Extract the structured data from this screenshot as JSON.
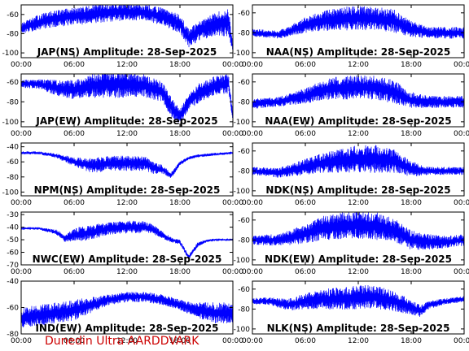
{
  "footer": "Dunedin Ultra AARDDVARK",
  "colors": {
    "trace": "#0000ff",
    "axes": "#000000",
    "footer": "#cc0000",
    "background": "#ffffff"
  },
  "chart_data": [
    {
      "type": "line",
      "title": "JAP(NS) Amplitude: 28-Sep-2025",
      "x_ticks": [
        "00:00",
        "06:00",
        "12:00",
        "18:00",
        "00:00"
      ],
      "xlim_hours": [
        0,
        24
      ],
      "y_ticks": [
        -60,
        -80,
        -100
      ],
      "ylim": [
        -105,
        -50
      ],
      "series": [
        {
          "x": [
            0,
            2,
            4,
            6,
            8,
            10,
            12,
            14,
            16,
            18,
            19,
            20,
            22,
            23.5,
            24
          ],
          "y": [
            -75,
            -68,
            -64,
            -62,
            -60,
            -58,
            -57,
            -58,
            -62,
            -70,
            -85,
            -78,
            -70,
            -68,
            -95
          ],
          "spread": [
            6,
            8,
            9,
            9,
            10,
            10,
            9,
            9,
            9,
            10,
            10,
            10,
            12,
            15,
            5
          ]
        }
      ]
    },
    {
      "type": "line",
      "title": "NAA(NS) Amplitude: 28-Sep-2025",
      "x_ticks": [
        "00:00",
        "06:00",
        "12:00",
        "18:00",
        "00:00"
      ],
      "xlim_hours": [
        0,
        24
      ],
      "y_ticks": [
        -60,
        -80,
        -100
      ],
      "ylim": [
        -105,
        -52
      ],
      "series": [
        {
          "x": [
            0,
            3,
            6,
            8,
            10,
            12,
            14,
            16,
            18,
            20,
            22,
            24
          ],
          "y": [
            -80,
            -82,
            -72,
            -68,
            -66,
            -65,
            -66,
            -68,
            -76,
            -80,
            -80,
            -80
          ],
          "spread": [
            4,
            4,
            8,
            10,
            12,
            12,
            12,
            12,
            8,
            6,
            6,
            6
          ]
        }
      ]
    },
    {
      "type": "line",
      "title": "JAP(EW) Amplitude: 28-Sep-2025",
      "x_ticks": [
        "00:00",
        "06:00",
        "12:00",
        "18:00",
        "00:00"
      ],
      "xlim_hours": [
        0,
        24
      ],
      "y_ticks": [
        -60,
        -80,
        -100
      ],
      "ylim": [
        -105,
        -52
      ],
      "series": [
        {
          "x": [
            0,
            2,
            4,
            6,
            8,
            10,
            12,
            14,
            16,
            17,
            18,
            19,
            20,
            22,
            23.5,
            24
          ],
          "y": [
            -62,
            -62,
            -66,
            -68,
            -64,
            -62,
            -62,
            -64,
            -70,
            -85,
            -95,
            -80,
            -72,
            -64,
            -62,
            -95
          ],
          "spread": [
            4,
            5,
            8,
            10,
            12,
            14,
            14,
            12,
            10,
            10,
            8,
            8,
            10,
            10,
            10,
            4
          ]
        }
      ]
    },
    {
      "type": "line",
      "title": "NAA(EW) Amplitude: 28-Sep-2025",
      "x_ticks": [
        "00:00",
        "06:00",
        "12:00",
        "18:00",
        "00:00"
      ],
      "xlim_hours": [
        0,
        24
      ],
      "y_ticks": [
        -60,
        -80,
        -100
      ],
      "ylim": [
        -105,
        -52
      ],
      "series": [
        {
          "x": [
            0,
            3,
            6,
            8,
            10,
            12,
            14,
            16,
            18,
            20,
            22,
            24
          ],
          "y": [
            -82,
            -80,
            -74,
            -68,
            -66,
            -65,
            -66,
            -70,
            -78,
            -80,
            -80,
            -80
          ],
          "spread": [
            5,
            5,
            8,
            10,
            12,
            12,
            12,
            12,
            8,
            6,
            6,
            6
          ]
        }
      ]
    },
    {
      "type": "line",
      "title": "NPM(NS) Amplitude: 28-Sep-2025",
      "x_ticks": [
        "00:00",
        "06:00",
        "12:00",
        "18:00",
        "00:00"
      ],
      "xlim_hours": [
        0,
        24
      ],
      "y_ticks": [
        -40,
        -60,
        -80,
        -100
      ],
      "ylim": [
        -105,
        -35
      ],
      "series": [
        {
          "x": [
            0,
            2,
            4,
            6,
            8,
            10,
            12,
            14,
            15,
            16,
            17,
            18,
            19,
            20,
            22,
            24
          ],
          "y": [
            -48,
            -48,
            -52,
            -60,
            -65,
            -62,
            -62,
            -62,
            -68,
            -70,
            -78,
            -62,
            -55,
            -52,
            -50,
            -48
          ],
          "spread": [
            2,
            2,
            3,
            6,
            10,
            10,
            10,
            10,
            8,
            6,
            4,
            3,
            2,
            2,
            2,
            2
          ]
        }
      ]
    },
    {
      "type": "line",
      "title": "NDK(NS) Amplitude: 28-Sep-2025",
      "x_ticks": [
        "00:00",
        "06:00",
        "12:00",
        "18:00",
        "00:00"
      ],
      "xlim_hours": [
        0,
        24
      ],
      "y_ticks": [
        -60,
        -80,
        -100
      ],
      "ylim": [
        -105,
        -52
      ],
      "series": [
        {
          "x": [
            0,
            3,
            6,
            8,
            10,
            12,
            14,
            16,
            18,
            20,
            22,
            24
          ],
          "y": [
            -80,
            -82,
            -76,
            -72,
            -70,
            -68,
            -68,
            -70,
            -78,
            -80,
            -80,
            -80
          ],
          "spread": [
            4,
            5,
            8,
            10,
            12,
            14,
            14,
            12,
            8,
            4,
            4,
            4
          ]
        }
      ]
    },
    {
      "type": "line",
      "title": "NWC(EW) Amplitude: 28-Sep-2025",
      "x_ticks": [
        "00:00",
        "06:00",
        "12:00",
        "18:00",
        "00:00"
      ],
      "xlim_hours": [
        0,
        24
      ],
      "y_ticks": [
        -30,
        -40,
        -50,
        -60,
        -70
      ],
      "ylim": [
        -70,
        -28
      ],
      "series": [
        {
          "x": [
            0,
            2,
            4,
            5,
            6,
            7,
            8,
            10,
            12,
            14,
            15,
            16,
            17,
            18,
            19,
            20,
            21,
            22,
            24
          ],
          "y": [
            -41,
            -41,
            -44,
            -49,
            -46,
            -45,
            -44,
            -41,
            -40,
            -40,
            -42,
            -46,
            -50,
            -52,
            -64,
            -54,
            -51,
            -50,
            -50
          ],
          "spread": [
            1,
            1,
            2,
            3,
            5,
            6,
            6,
            5,
            5,
            5,
            4,
            3,
            2,
            2,
            2,
            2,
            1,
            1,
            1
          ]
        }
      ]
    },
    {
      "type": "line",
      "title": "NDK(EW) Amplitude: 28-Sep-2025",
      "x_ticks": [
        "00:00",
        "06:00",
        "12:00",
        "18:00",
        "00:00"
      ],
      "xlim_hours": [
        0,
        24
      ],
      "y_ticks": [
        -60,
        -80,
        -100
      ],
      "ylim": [
        -105,
        -52
      ],
      "series": [
        {
          "x": [
            0,
            3,
            6,
            8,
            10,
            12,
            14,
            16,
            18,
            20,
            22,
            24
          ],
          "y": [
            -80,
            -80,
            -74,
            -68,
            -66,
            -65,
            -66,
            -70,
            -80,
            -82,
            -82,
            -80
          ],
          "spread": [
            5,
            6,
            10,
            12,
            14,
            14,
            14,
            12,
            10,
            8,
            6,
            6
          ]
        }
      ]
    },
    {
      "type": "line",
      "title": "IND(EW) Amplitude: 28-Sep-2025",
      "x_ticks": [
        "00:00",
        "06:00",
        "12:00",
        "18:00",
        "00:00"
      ],
      "xlim_hours": [
        0,
        24
      ],
      "y_ticks": [
        -40,
        -60,
        -80
      ],
      "ylim": [
        -80,
        -40
      ],
      "series": [
        {
          "x": [
            0,
            2,
            4,
            6,
            8,
            10,
            12,
            14,
            16,
            18,
            20,
            22,
            24
          ],
          "y": [
            -68,
            -66,
            -64,
            -62,
            -58,
            -54,
            -52,
            -52,
            -54,
            -58,
            -62,
            -64,
            -64
          ],
          "spread": [
            8,
            8,
            8,
            8,
            6,
            4,
            4,
            4,
            4,
            4,
            6,
            8,
            8
          ]
        }
      ]
    },
    {
      "type": "line",
      "title": "NLK(NS) Amplitude: 28-Sep-2025",
      "x_ticks": [
        "00:00",
        "06:00",
        "12:00",
        "18:00",
        "00:00"
      ],
      "xlim_hours": [
        0,
        24
      ],
      "y_ticks": [
        -60,
        -80,
        -100
      ],
      "ylim": [
        -105,
        -52
      ],
      "series": [
        {
          "x": [
            0,
            2,
            4,
            6,
            8,
            10,
            12,
            14,
            16,
            18,
            19,
            20,
            22,
            24
          ],
          "y": [
            -72,
            -72,
            -76,
            -72,
            -70,
            -70,
            -68,
            -68,
            -72,
            -78,
            -82,
            -76,
            -72,
            -70
          ],
          "spread": [
            3,
            4,
            6,
            8,
            10,
            12,
            12,
            12,
            10,
            8,
            6,
            4,
            3,
            3
          ]
        }
      ]
    }
  ]
}
